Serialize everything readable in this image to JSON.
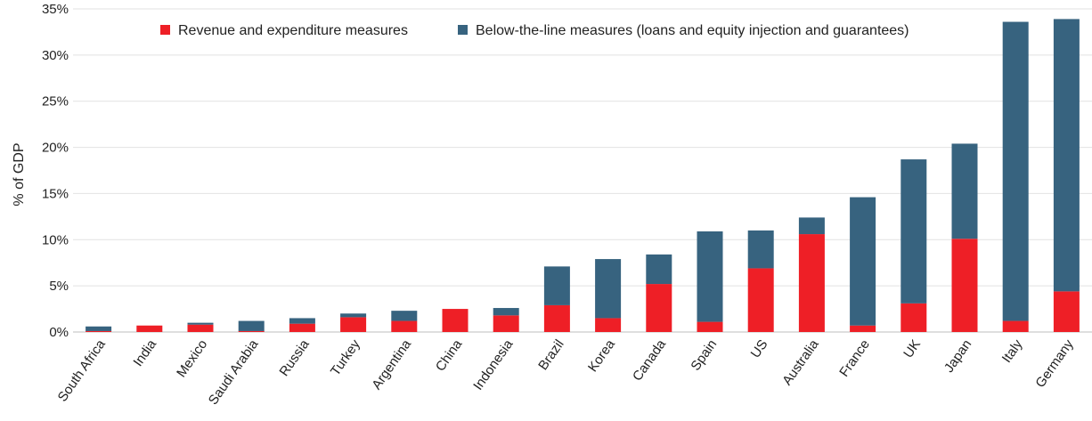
{
  "chart_data": {
    "type": "bar",
    "stacked": true,
    "ylabel": "% of GDP",
    "ylim": [
      0,
      35
    ],
    "yticks": [
      "0%",
      "5%",
      "10%",
      "15%",
      "20%",
      "25%",
      "30%",
      "35%"
    ],
    "ytick_values": [
      0,
      5,
      10,
      15,
      20,
      25,
      30,
      35
    ],
    "grid": true,
    "legend_position": "top",
    "categories": [
      "South Africa",
      "India",
      "Mexico",
      "Saudi Arabia",
      "Russia",
      "Turkey",
      "Argentina",
      "China",
      "Indonesia",
      "Brazil",
      "Korea",
      "Canada",
      "Spain",
      "US",
      "Australia",
      "France",
      "UK",
      "Japan",
      "Italy",
      "Germany"
    ],
    "series": [
      {
        "name": "Revenue and expenditure measures",
        "color": "#ee1f26",
        "values": [
          0.1,
          0.7,
          0.8,
          0.1,
          0.9,
          1.6,
          1.2,
          2.5,
          1.8,
          2.9,
          1.5,
          5.2,
          1.1,
          6.9,
          10.6,
          0.7,
          3.1,
          10.1,
          1.2,
          4.4
        ]
      },
      {
        "name": "Below-the-line measures (loans and equity injection and guarantees)",
        "color": "#37637f",
        "values": [
          0.5,
          0.0,
          0.2,
          1.1,
          0.6,
          0.4,
          1.1,
          0.0,
          0.8,
          4.2,
          6.4,
          3.2,
          9.8,
          4.1,
          1.8,
          13.9,
          15.6,
          10.3,
          32.4,
          29.5
        ]
      }
    ]
  }
}
